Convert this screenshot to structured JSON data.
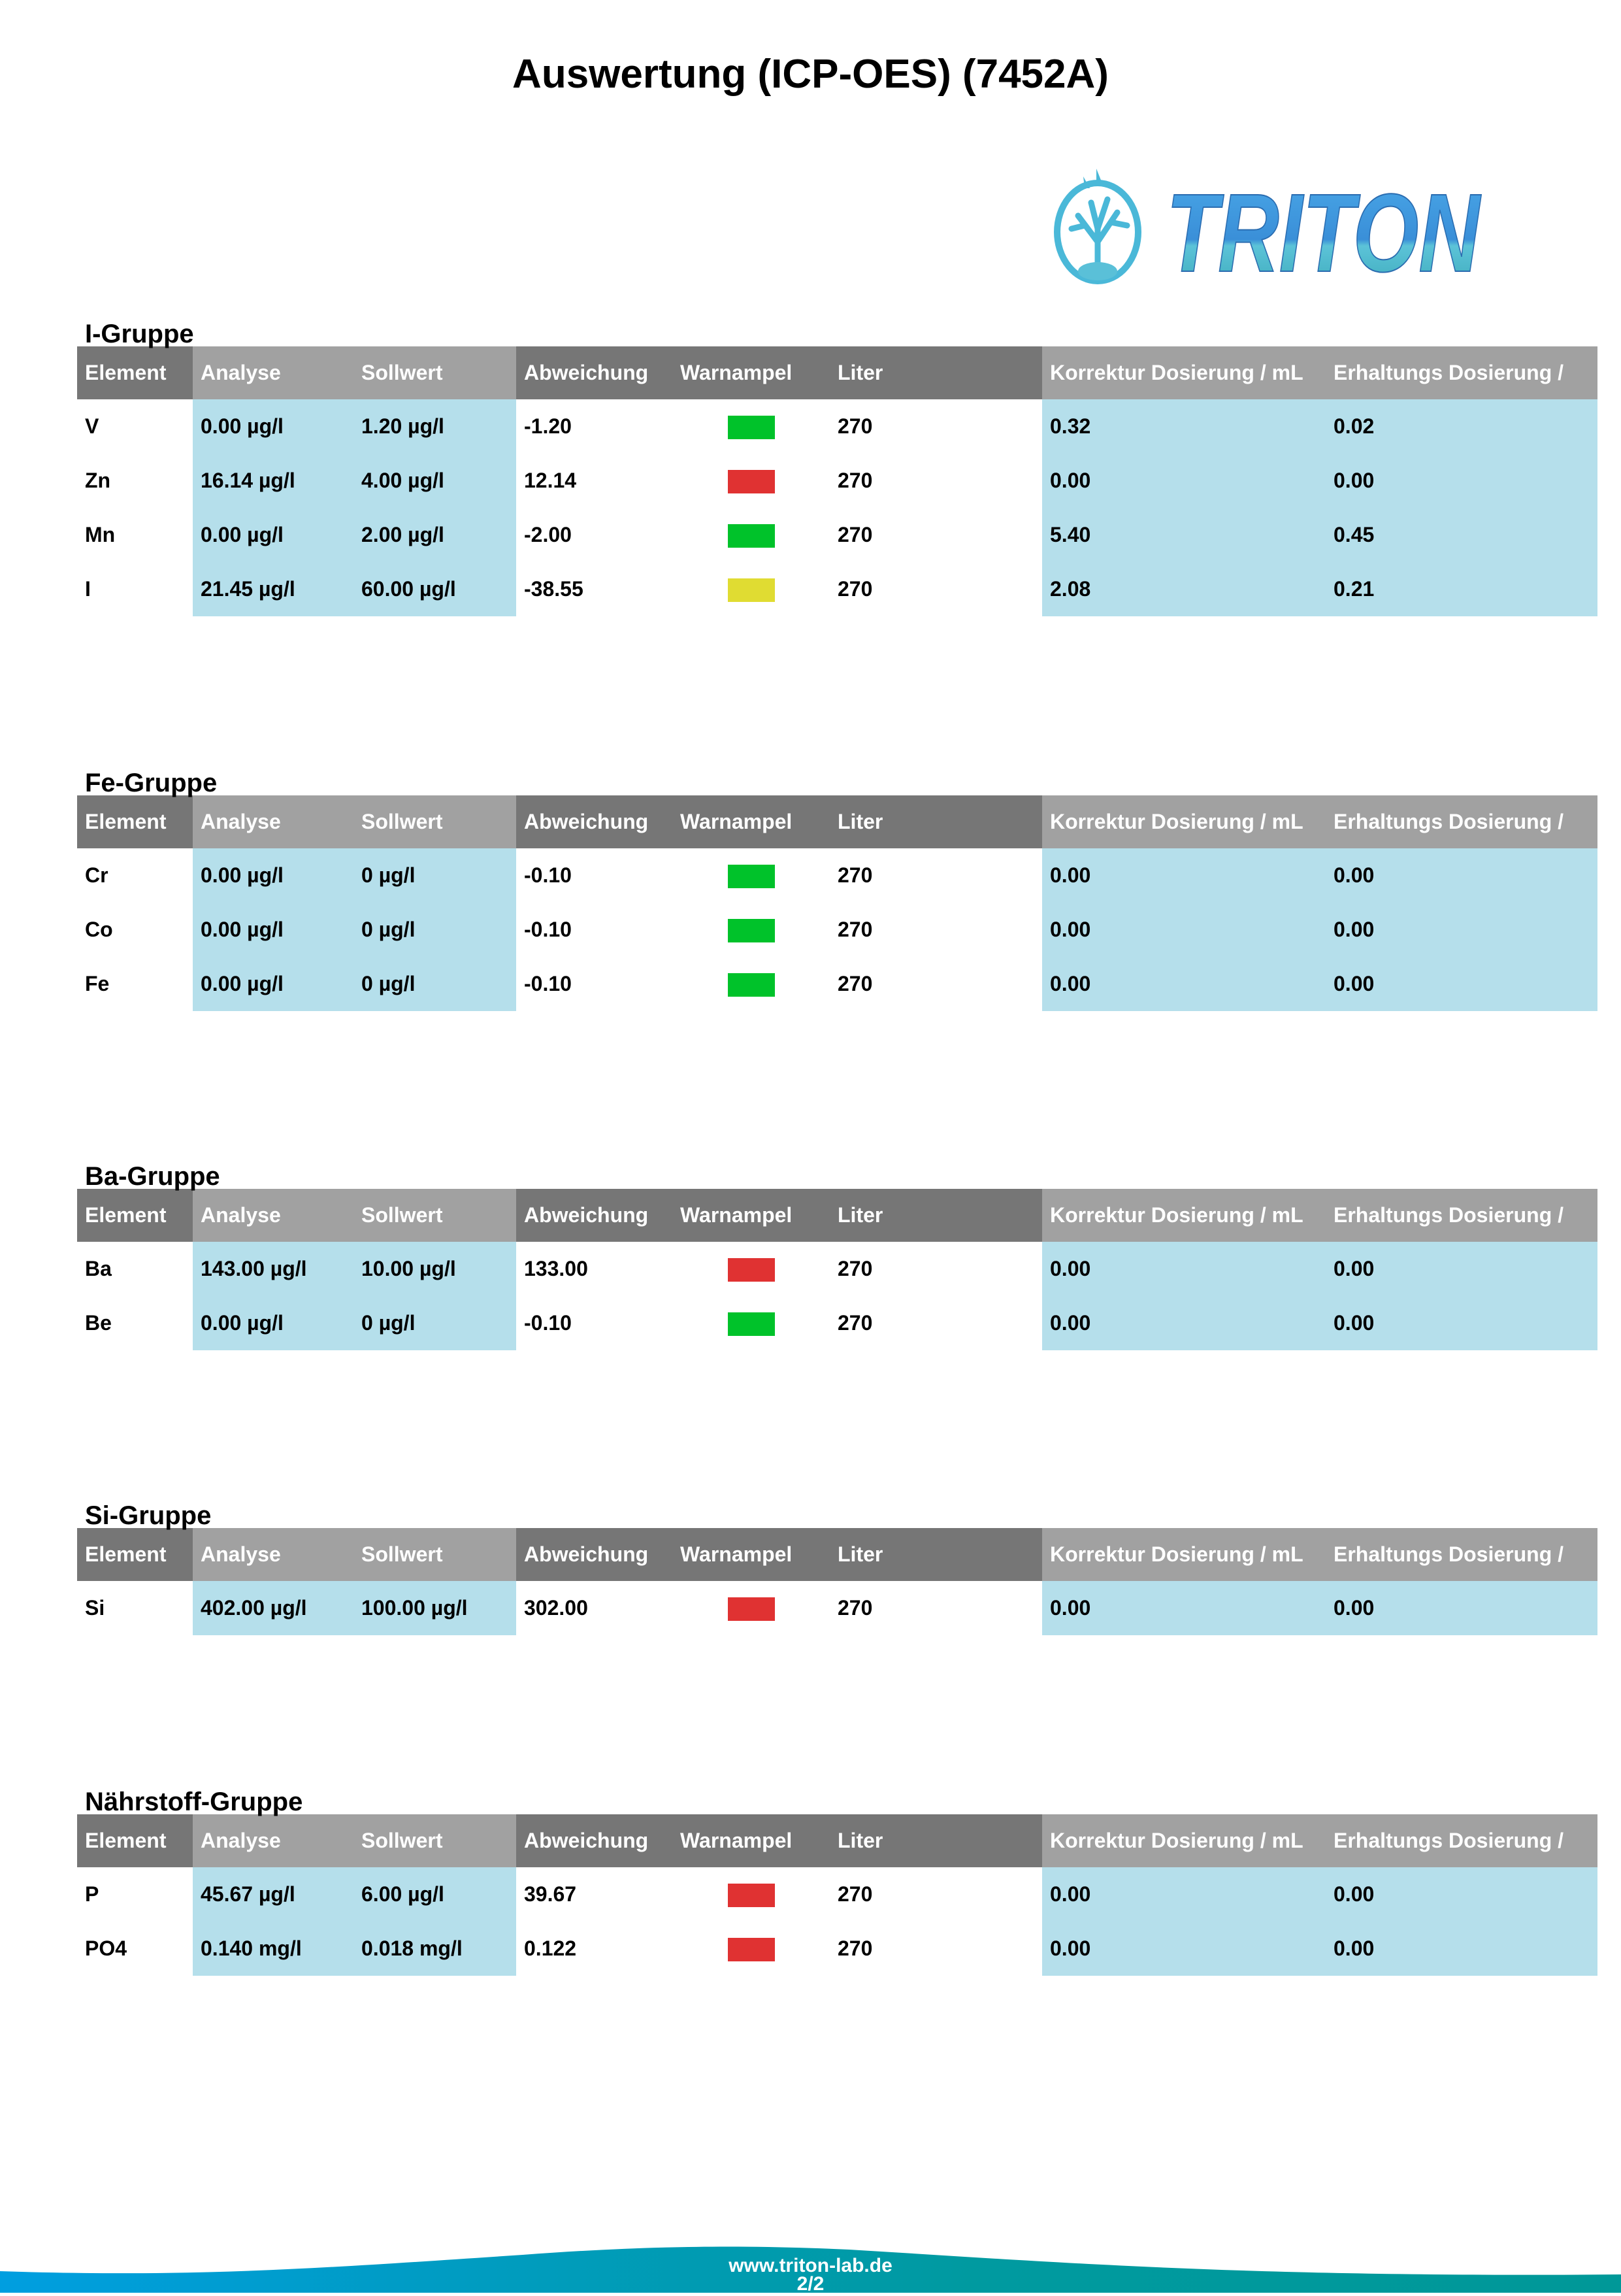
{
  "title": "Auswertung (ICP-OES) (7452A)",
  "logo": {
    "text": "TRITON"
  },
  "columns": [
    "Element",
    "Analyse",
    "Sollwert",
    "Abweichung",
    "Warnampel",
    "Liter",
    "Korrektur Dosierung / mL",
    "Erhaltungs Dosierung /"
  ],
  "colors": {
    "green": "#00c22a",
    "red": "#e03232",
    "yellow": "#e0dc32",
    "header_dark": "#767676",
    "header_light": "#a1a1a1",
    "cell_blue": "#b5dfeb"
  },
  "groups": [
    {
      "name": "I-Gruppe",
      "rows": [
        {
          "element": "V",
          "analyse": "0.00 µg/l",
          "sollwert": "1.20 µg/l",
          "abweichung": "-1.20",
          "warn": "green",
          "liter": "270",
          "korrektur": "0.32",
          "erhaltung": "0.02"
        },
        {
          "element": "Zn",
          "analyse": "16.14 µg/l",
          "sollwert": "4.00 µg/l",
          "abweichung": "12.14",
          "warn": "red",
          "liter": "270",
          "korrektur": "0.00",
          "erhaltung": "0.00"
        },
        {
          "element": "Mn",
          "analyse": "0.00 µg/l",
          "sollwert": "2.00 µg/l",
          "abweichung": "-2.00",
          "warn": "green",
          "liter": "270",
          "korrektur": "5.40",
          "erhaltung": "0.45"
        },
        {
          "element": "I",
          "analyse": "21.45 µg/l",
          "sollwert": "60.00 µg/l",
          "abweichung": "-38.55",
          "warn": "yellow",
          "liter": "270",
          "korrektur": "2.08",
          "erhaltung": "0.21"
        }
      ]
    },
    {
      "name": "Fe-Gruppe",
      "rows": [
        {
          "element": "Cr",
          "analyse": "0.00 µg/l",
          "sollwert": "0 µg/l",
          "abweichung": "-0.10",
          "warn": "green",
          "liter": "270",
          "korrektur": "0.00",
          "erhaltung": "0.00"
        },
        {
          "element": "Co",
          "analyse": "0.00 µg/l",
          "sollwert": "0 µg/l",
          "abweichung": "-0.10",
          "warn": "green",
          "liter": "270",
          "korrektur": "0.00",
          "erhaltung": "0.00"
        },
        {
          "element": "Fe",
          "analyse": "0.00 µg/l",
          "sollwert": "0 µg/l",
          "abweichung": "-0.10",
          "warn": "green",
          "liter": "270",
          "korrektur": "0.00",
          "erhaltung": "0.00"
        }
      ]
    },
    {
      "name": "Ba-Gruppe",
      "rows": [
        {
          "element": "Ba",
          "analyse": "143.00 µg/l",
          "sollwert": "10.00 µg/l",
          "abweichung": "133.00",
          "warn": "red",
          "liter": "270",
          "korrektur": "0.00",
          "erhaltung": "0.00"
        },
        {
          "element": "Be",
          "analyse": "0.00 µg/l",
          "sollwert": "0 µg/l",
          "abweichung": "-0.10",
          "warn": "green",
          "liter": "270",
          "korrektur": "0.00",
          "erhaltung": "0.00"
        }
      ]
    },
    {
      "name": "Si-Gruppe",
      "rows": [
        {
          "element": "Si",
          "analyse": "402.00 µg/l",
          "sollwert": "100.00 µg/l",
          "abweichung": "302.00",
          "warn": "red",
          "liter": "270",
          "korrektur": "0.00",
          "erhaltung": "0.00"
        }
      ]
    },
    {
      "name": "Nährstoff-Gruppe",
      "rows": [
        {
          "element": "P",
          "analyse": "45.67 µg/l",
          "sollwert": "6.00 µg/l",
          "abweichung": "39.67",
          "warn": "red",
          "liter": "270",
          "korrektur": "0.00",
          "erhaltung": "0.00"
        },
        {
          "element": "PO4",
          "analyse": "0.140 mg/l",
          "sollwert": "0.018 mg/l",
          "abweichung": "0.122",
          "warn": "red",
          "liter": "270",
          "korrektur": "0.00",
          "erhaltung": "0.00"
        }
      ]
    }
  ],
  "footer": {
    "url": "www.triton-lab.de",
    "page": "2/2"
  }
}
